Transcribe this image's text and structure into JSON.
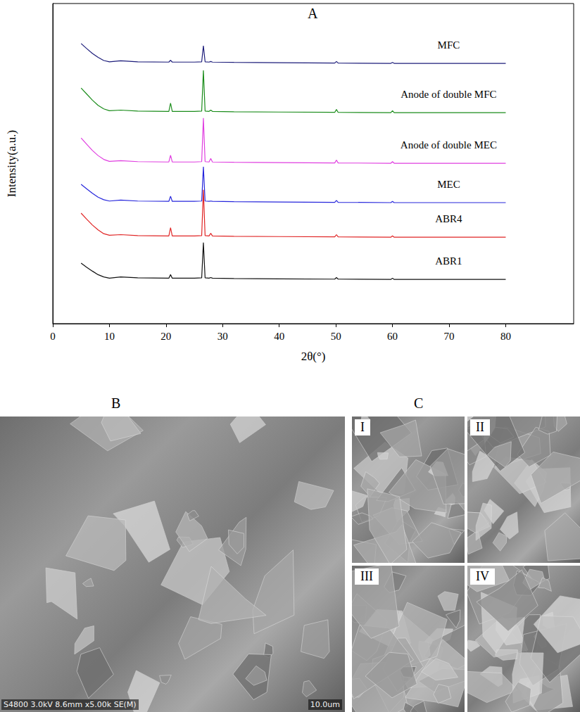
{
  "chart_data": {
    "type": "line",
    "title": "A",
    "xlabel": "2θ(°)",
    "ylabel": "Intensity(a.u.)",
    "x": [
      5,
      6,
      7,
      8,
      9,
      10,
      12,
      15,
      20.5,
      20.8,
      21.1,
      25,
      26.3,
      26.6,
      26.9,
      27.6,
      27.9,
      28.2,
      32,
      40,
      49.8,
      50.1,
      50.4,
      59.7,
      60,
      60.3,
      70,
      80
    ],
    "xlim": [
      0,
      92
    ],
    "xticks": [
      0,
      10,
      20,
      30,
      40,
      50,
      60,
      70,
      80
    ],
    "ylim": [
      0,
      100
    ],
    "tick_labels": "x",
    "grid": false,
    "marker": "none",
    "series": [
      {
        "name": "MFC",
        "color": "#1c1c7a",
        "values": [
          87.5,
          85.9,
          84.4,
          83.2,
          82.2,
          81.8,
          82.1,
          81.8,
          81.7,
          82.3,
          81.7,
          81.7,
          81.8,
          86.8,
          81.8,
          81.7,
          81.9,
          81.7,
          81.6,
          81.5,
          81.4,
          81.9,
          81.4,
          81.3,
          81.6,
          81.3,
          81.3,
          81.3
        ]
      },
      {
        "name": "Anode of double MFC",
        "color": "#1a8c1a",
        "values": [
          73.6,
          71.7,
          69.8,
          68.2,
          67.1,
          66.5,
          66.7,
          66.4,
          66.3,
          68.9,
          66.3,
          66.3,
          66.4,
          79.1,
          66.4,
          66.3,
          66.7,
          66.3,
          66.2,
          66.1,
          66.0,
          66.9,
          66.0,
          65.9,
          66.5,
          65.9,
          65.9,
          65.9
        ]
      },
      {
        "name": "Anode of double MEC",
        "color": "#e03ee0",
        "values": [
          58.0,
          56.0,
          54.1,
          52.5,
          51.3,
          50.7,
          50.9,
          50.6,
          50.5,
          52.6,
          50.5,
          50.5,
          50.6,
          64.2,
          50.6,
          50.5,
          51.6,
          50.5,
          50.4,
          50.3,
          50.2,
          51.1,
          50.2,
          50.1,
          50.6,
          50.1,
          50.1,
          50.1
        ]
      },
      {
        "name": "MEC",
        "color": "#2626dc",
        "values": [
          43.5,
          42.1,
          40.7,
          39.5,
          38.7,
          38.3,
          38.6,
          38.3,
          38.2,
          39.8,
          38.2,
          38.2,
          38.3,
          49.0,
          38.3,
          38.2,
          38.3,
          38.2,
          38.1,
          38.0,
          37.9,
          38.5,
          37.9,
          37.8,
          38.2,
          37.8,
          37.8,
          37.8
        ]
      },
      {
        "name": "ABR4",
        "color": "#e02424",
        "values": [
          34.5,
          32.6,
          30.8,
          29.3,
          28.1,
          27.6,
          27.8,
          27.5,
          27.4,
          30.0,
          27.4,
          27.4,
          27.5,
          41.8,
          27.5,
          27.4,
          28.2,
          27.4,
          27.3,
          27.2,
          27.1,
          27.8,
          27.1,
          27.0,
          27.4,
          27.0,
          27.0,
          27.0
        ]
      },
      {
        "name": "ABR1",
        "color": "#111111",
        "values": [
          18.9,
          17.6,
          16.4,
          15.3,
          14.6,
          14.2,
          14.6,
          14.3,
          14.2,
          15.3,
          14.2,
          14.2,
          14.3,
          25.3,
          14.3,
          14.2,
          14.4,
          14.2,
          14.1,
          14.0,
          13.9,
          14.4,
          13.9,
          13.8,
          14.2,
          13.8,
          13.8,
          13.8
        ]
      }
    ]
  },
  "panels": {
    "B": {
      "label": "B",
      "caption": "S4800 3.0kV 8.6mm x5.00k SE(M)",
      "scale": "10.0um"
    },
    "C": {
      "label": "C",
      "subpanels": [
        "I",
        "II",
        "III",
        "IV"
      ]
    }
  }
}
